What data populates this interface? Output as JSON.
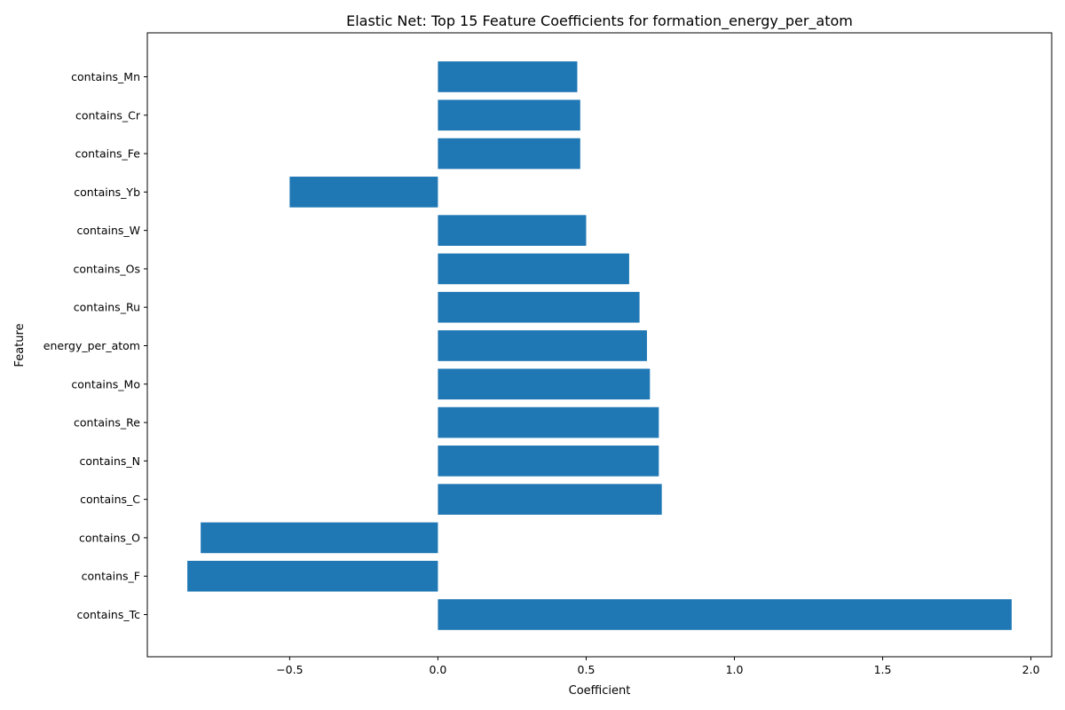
{
  "chart_data": {
    "type": "bar",
    "orientation": "horizontal",
    "title": "Elastic Net: Top 15 Feature Coefficients for formation_energy_per_atom",
    "xlabel": "Coefficient",
    "ylabel": "Feature",
    "xlim": [
      -0.98,
      2.07
    ],
    "xticks": [
      -0.5,
      0.0,
      0.5,
      1.0,
      1.5,
      2.0
    ],
    "xtick_labels": [
      "−0.5",
      "0.0",
      "0.5",
      "1.0",
      "1.5",
      "2.0"
    ],
    "categories": [
      "contains_Mn",
      "contains_Cr",
      "contains_Fe",
      "contains_Yb",
      "contains_W",
      "contains_Os",
      "contains_Ru",
      "energy_per_atom",
      "contains_Mo",
      "contains_Re",
      "contains_N",
      "contains_C",
      "contains_O",
      "contains_F",
      "contains_Tc"
    ],
    "values": [
      0.47,
      0.48,
      0.48,
      -0.5,
      0.5,
      0.645,
      0.68,
      0.705,
      0.715,
      0.745,
      0.745,
      0.755,
      -0.8,
      -0.845,
      1.935
    ],
    "color": "#1f77b4",
    "grid": false
  }
}
